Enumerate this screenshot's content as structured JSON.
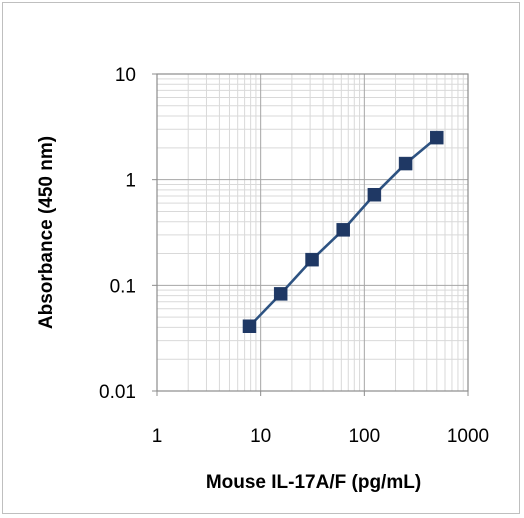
{
  "chart_data": {
    "type": "line",
    "title": "",
    "xlabel": "Mouse IL-17A/F (pg/mL)",
    "ylabel": "Absorbance (450 nm)",
    "x_scale": "log",
    "y_scale": "log",
    "xlim": [
      1,
      1000
    ],
    "ylim": [
      0.01,
      10
    ],
    "x_tick_labels": [
      "1",
      "10",
      "100",
      "1000"
    ],
    "y_tick_labels": [
      "0.01",
      "0.1",
      "1",
      "10"
    ],
    "grid": true,
    "legend": "none",
    "series": [
      {
        "x": [
          7.8,
          15.6,
          31.3,
          62.5,
          125,
          250,
          500
        ],
        "y": [
          0.041,
          0.083,
          0.175,
          0.335,
          0.72,
          1.42,
          2.5
        ],
        "color": "#2e5382",
        "marker_color": "#1f3864",
        "marker": "square"
      }
    ]
  }
}
